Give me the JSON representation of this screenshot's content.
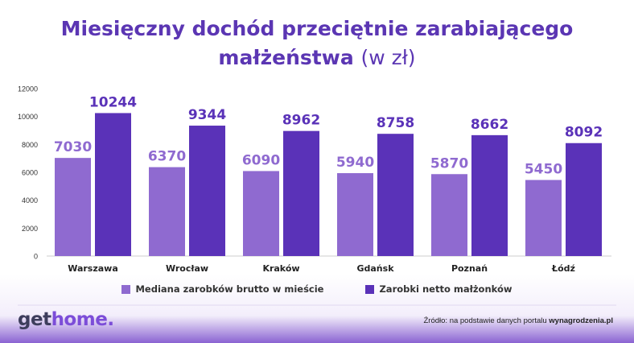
{
  "title": {
    "line1": "Miesięczny dochód przeciętnie zarabiającego",
    "line2_bold": "małżeństwa",
    "line2_unit": "(w zł)"
  },
  "colors": {
    "series1": "#8f6ad0",
    "series2": "#5a32b8",
    "label1": "#8f6ad0",
    "label2": "#5a32b8"
  },
  "chart_data": {
    "type": "bar",
    "categories": [
      "Warszawa",
      "Wrocław",
      "Kraków",
      "Gdańsk",
      "Poznań",
      "Łódź"
    ],
    "series": [
      {
        "name": "Mediana zarobków brutto w mieście",
        "values": [
          7030,
          6370,
          6090,
          5940,
          5870,
          5450
        ]
      },
      {
        "name": "Zarobki netto małżonków",
        "values": [
          10244,
          9344,
          8962,
          8758,
          8662,
          8092
        ]
      }
    ],
    "yticks": [
      "0",
      "2000",
      "4000",
      "6000",
      "8000",
      "10000",
      "12000"
    ],
    "ylim": [
      0,
      12000
    ],
    "legend_position": "bottom"
  },
  "legend": {
    "item1": "Mediana zarobków brutto w mieście",
    "item2": "Zarobki netto małżonków"
  },
  "footer": {
    "logo_get": "get",
    "logo_home": "home",
    "logo_dot": ".",
    "source_prefix": "Źródło: na podstawie danych portalu",
    "source_site": "wynagrodzenia.pl"
  }
}
